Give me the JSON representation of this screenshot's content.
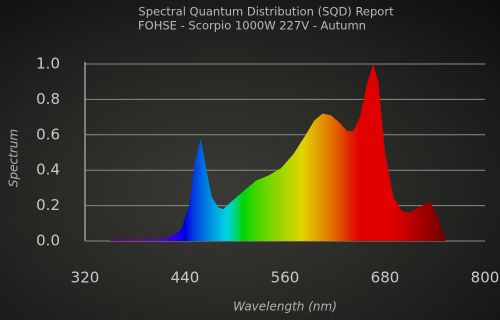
{
  "chart_data": {
    "type": "area",
    "title": "Spectral Quantum Distribution (SQD) Report",
    "subtitle": "FOHSE - Scorpio 1000W 227V - Autumn",
    "x_label": "Wavelength (nm)",
    "y_label": "Spectrum",
    "x": [
      350,
      400,
      420,
      435,
      445,
      452,
      459,
      465,
      472,
      480,
      486,
      495,
      510,
      525,
      540,
      555,
      570,
      585,
      595,
      605,
      615,
      625,
      635,
      642,
      650,
      658,
      666,
      672,
      680,
      690,
      700,
      710,
      720,
      734,
      742,
      752
    ],
    "y": [
      0.01,
      0.01,
      0.02,
      0.06,
      0.2,
      0.45,
      0.58,
      0.42,
      0.25,
      0.19,
      0.18,
      0.22,
      0.28,
      0.34,
      0.37,
      0.41,
      0.49,
      0.6,
      0.68,
      0.72,
      0.71,
      0.67,
      0.62,
      0.62,
      0.7,
      0.88,
      1.0,
      0.9,
      0.5,
      0.25,
      0.17,
      0.16,
      0.19,
      0.22,
      0.15,
      0.02
    ],
    "xlim": [
      320,
      800
    ],
    "xticks": [
      320,
      440,
      560,
      680,
      800
    ],
    "ylim": [
      0,
      1.0
    ],
    "yticks": [
      {
        "value": 0,
        "label": "0.0"
      },
      0.2,
      0.4,
      0.6,
      0.8,
      {
        "value": 1.0,
        "label": "1.0"
      }
    ],
    "grid": true
  }
}
